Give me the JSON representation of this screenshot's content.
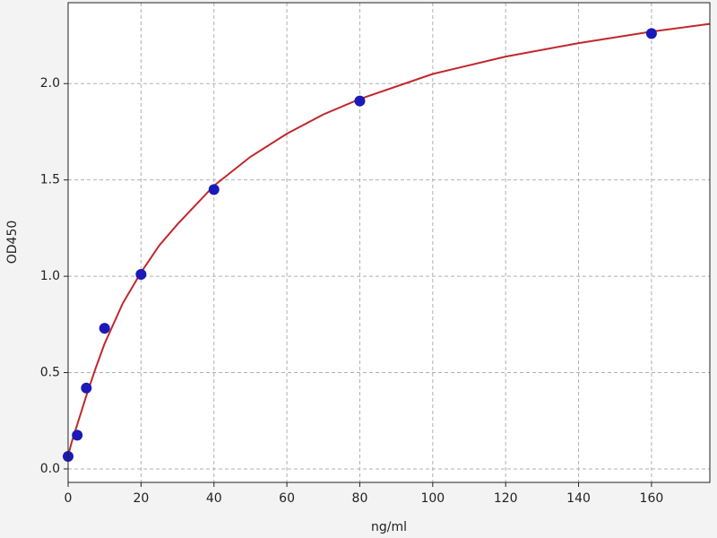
{
  "chart_data": {
    "type": "scatter",
    "xlabel": "ng/ml",
    "ylabel": "OD450",
    "xlim": [
      0,
      176
    ],
    "ylim": [
      -0.07,
      2.42
    ],
    "xticks": [
      0,
      20,
      40,
      60,
      80,
      100,
      120,
      140,
      160
    ],
    "yticks": [
      {
        "value": 0,
        "label": "0.0"
      },
      0.5,
      {
        "value": 1,
        "label": "1.0"
      },
      1.5,
      {
        "value": 2,
        "label": "2.0"
      }
    ],
    "grid": true,
    "series": [
      {
        "type": "scatter",
        "color": "#1a1ab8",
        "x": [
          0,
          2.5,
          5,
          10,
          20,
          40,
          80,
          160
        ],
        "values": [
          0.065,
          0.175,
          0.42,
          0.73,
          1.01,
          1.45,
          1.91,
          2.26
        ]
      },
      {
        "type": "line",
        "color": "#c0282b",
        "x": [
          0,
          1,
          2.5,
          5,
          7.5,
          10,
          15,
          20,
          25,
          30,
          40,
          50,
          60,
          70,
          80,
          100,
          120,
          140,
          160,
          176
        ],
        "values": [
          0.07,
          0.14,
          0.23,
          0.38,
          0.52,
          0.65,
          0.86,
          1.02,
          1.16,
          1.27,
          1.47,
          1.62,
          1.74,
          1.84,
          1.92,
          2.05,
          2.14,
          2.21,
          2.27,
          2.31
        ]
      }
    ]
  }
}
